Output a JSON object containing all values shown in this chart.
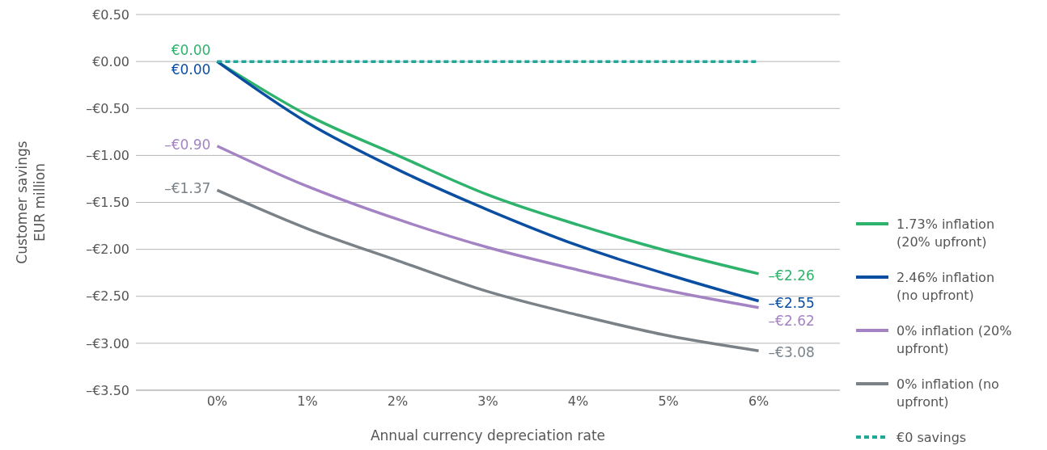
{
  "chart_data": {
    "type": "line",
    "xlabel": "Annual currency depreciation rate",
    "ylabel": "Customer savings\nEUR million",
    "xlim": [
      -0.9,
      6.9
    ],
    "xticks": [
      {
        "value": 0,
        "label": "0%"
      },
      {
        "value": 1,
        "label": "1%"
      },
      {
        "value": 2,
        "label": "2%"
      },
      {
        "value": 3,
        "label": "3%"
      },
      {
        "value": 4,
        "label": "4%"
      },
      {
        "value": 5,
        "label": "5%"
      },
      {
        "value": 6,
        "label": "6%"
      }
    ],
    "ylim": [
      -3.5,
      0.5
    ],
    "yticks": [
      {
        "value": 0.5,
        "label": "€0.50"
      },
      {
        "value": 0,
        "label": "€0.00"
      },
      {
        "value": -0.5,
        "label": "–€0.50"
      },
      {
        "value": -1,
        "label": "–€1.00"
      },
      {
        "value": -1.5,
        "label": "–€1.50"
      },
      {
        "value": -2,
        "label": "–€2.00"
      },
      {
        "value": -2.5,
        "label": "–€2.50"
      },
      {
        "value": -3,
        "label": "–€3.00"
      },
      {
        "value": -3.5,
        "label": "–€3.50"
      }
    ],
    "grid": "y",
    "legend": "right",
    "marker": "none",
    "x": [
      0,
      1,
      2,
      3,
      4,
      5,
      6
    ],
    "series": [
      {
        "name": "1.73% inflation (20% upfront)",
        "color": "#2db36b",
        "values": [
          0,
          -0.57,
          -1.0,
          -1.42,
          -1.74,
          -2.02,
          -2.26
        ],
        "value_labels": [
          "€0.00",
          null,
          null,
          null,
          null,
          null,
          "–€2.26"
        ]
      },
      {
        "name": "2.46% inflation (no upfront)",
        "color": "#0a4ea2",
        "values": [
          0,
          -0.65,
          -1.15,
          -1.58,
          -1.96,
          -2.27,
          -2.55
        ],
        "value_labels": [
          "€0.00",
          null,
          null,
          null,
          null,
          null,
          "–€2.55"
        ]
      },
      {
        "name": "0% inflation (20% upfront)",
        "color": "#a483c4",
        "values": [
          -0.9,
          -1.33,
          -1.68,
          -1.98,
          -2.22,
          -2.44,
          -2.62
        ],
        "value_labels": [
          "–€0.90",
          null,
          null,
          null,
          null,
          null,
          "–€2.62"
        ]
      },
      {
        "name": "0% inflation (no upfront)",
        "color": "#7a8288",
        "values": [
          -1.37,
          -1.78,
          -2.12,
          -2.45,
          -2.7,
          -2.92,
          -3.08
        ],
        "value_labels": [
          "–€1.37",
          null,
          null,
          null,
          null,
          null,
          "–€3.08"
        ]
      },
      {
        "name": "€0 savings",
        "color": "#1fa89a",
        "x": [
          0,
          6
        ],
        "values": [
          0,
          0
        ],
        "line_style": "dashed"
      }
    ]
  }
}
